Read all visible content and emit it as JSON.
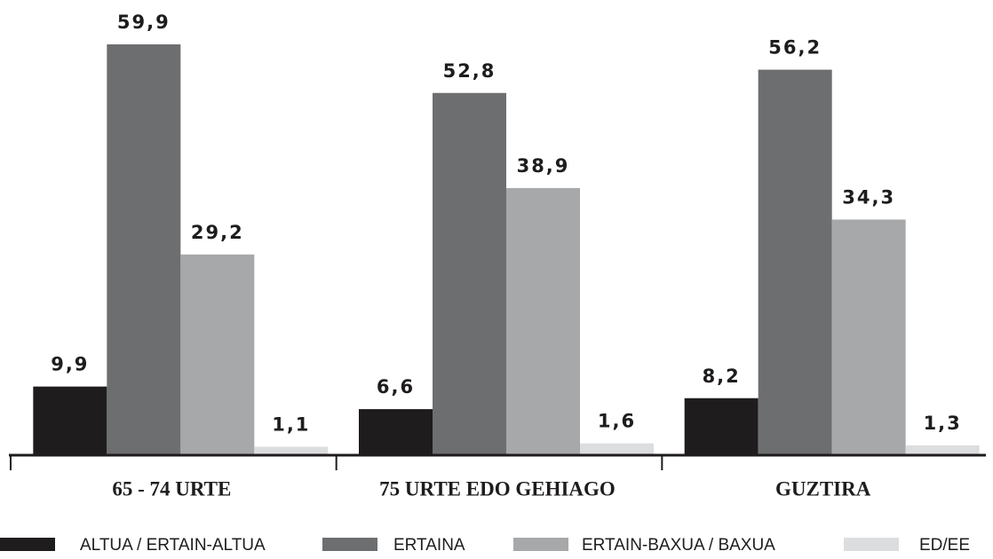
{
  "chart_data": {
    "type": "bar",
    "categories": [
      "65 - 74 URTE",
      "75 URTE EDO GEHIAGO",
      "GUZTIRA"
    ],
    "series": [
      {
        "name": "ALTUA / ERTAIN-ALTUA",
        "color": "#1f1c1d",
        "values": [
          9.9,
          6.6,
          8.2
        ],
        "value_labels": [
          "9,9",
          "6,6",
          "8,2"
        ]
      },
      {
        "name": "ERTAINA",
        "color": "#6d6e70",
        "values": [
          59.9,
          52.8,
          56.2
        ],
        "value_labels": [
          "59,9",
          "52,8",
          "56,2"
        ]
      },
      {
        "name": "ERTAIN-BAXUA / BAXUA",
        "color": "#a7a8aa",
        "values": [
          29.2,
          38.9,
          34.3
        ],
        "value_labels": [
          "29,2",
          "38,9",
          "34,3"
        ]
      },
      {
        "name": "ED/EE",
        "color": "#dcddde",
        "values": [
          1.1,
          1.6,
          1.3
        ],
        "value_labels": [
          "1,1",
          "1,6",
          "1,3"
        ]
      }
    ],
    "legend": "bottom"
  }
}
